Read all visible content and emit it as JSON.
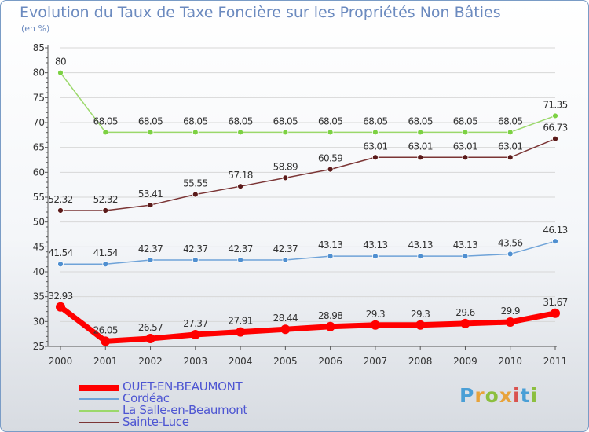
{
  "title": "Evolution du Taux de Taxe Foncière sur les Propriétés Non Bâties",
  "unit_label": "(en %)",
  "brand": "Proxiti",
  "colors": {
    "series": [
      "#ff0000",
      "#6fa3d8",
      "#9bd86b",
      "#7b3535"
    ],
    "markers": [
      "#ff0000",
      "#4f8fd0",
      "#7cd143",
      "#5a1a1a"
    ],
    "axis": "#555555",
    "grid": "#d7d7d7",
    "tick_text": "#333333"
  },
  "chart_data": {
    "type": "line",
    "title": "Evolution du Taux de Taxe Foncière sur les Propriétés Non Bâties",
    "ylabel": "(en %)",
    "xlabel": "",
    "x": [
      "2000",
      "2001",
      "2002",
      "2003",
      "2004",
      "2005",
      "2006",
      "2007",
      "2008",
      "2009",
      "2010",
      "2011"
    ],
    "ylim": [
      25,
      85
    ],
    "yticks": [
      25,
      30,
      35,
      40,
      45,
      50,
      55,
      60,
      65,
      70,
      75,
      80,
      85
    ],
    "legend_position": "bottom-left",
    "series": [
      {
        "name": "OUET-EN-BEAUMONT",
        "values": [
          32.93,
          26.05,
          26.57,
          27.37,
          27.91,
          28.44,
          28.98,
          29.3,
          29.3,
          29.6,
          29.9,
          31.67
        ],
        "labels": [
          "32.93",
          "26.05",
          "26.57",
          "27.37",
          "27.91",
          "28.44",
          "28.98",
          "29.3",
          "29.3",
          "29.6",
          "29.9",
          "31.67"
        ]
      },
      {
        "name": "Cordéac",
        "values": [
          41.54,
          41.54,
          42.37,
          42.37,
          42.37,
          42.37,
          43.13,
          43.13,
          43.13,
          43.13,
          43.56,
          46.13
        ],
        "labels": [
          "41.54",
          "41.54",
          "42.37",
          "42.37",
          "42.37",
          "42.37",
          "43.13",
          "43.13",
          "43.13",
          "43.13",
          "43.56",
          "46.13"
        ]
      },
      {
        "name": "La Salle-en-Beaumont",
        "values": [
          80,
          68.05,
          68.05,
          68.05,
          68.05,
          68.05,
          68.05,
          68.05,
          68.05,
          68.05,
          68.05,
          71.35
        ],
        "labels": [
          "80",
          "68.05",
          "68.05",
          "68.05",
          "68.05",
          "68.05",
          "68.05",
          "68.05",
          "68.05",
          "68.05",
          "68.05",
          "71.35"
        ]
      },
      {
        "name": "Sainte-Luce",
        "values": [
          52.32,
          52.32,
          53.41,
          55.55,
          57.18,
          58.89,
          60.59,
          63.01,
          63.01,
          63.01,
          63.01,
          66.73
        ],
        "labels": [
          "52.32",
          "52.32",
          "53.41",
          "55.55",
          "57.18",
          "58.89",
          "60.59",
          "63.01",
          "63.01",
          "63.01",
          "63.01",
          "66.73"
        ]
      }
    ]
  }
}
